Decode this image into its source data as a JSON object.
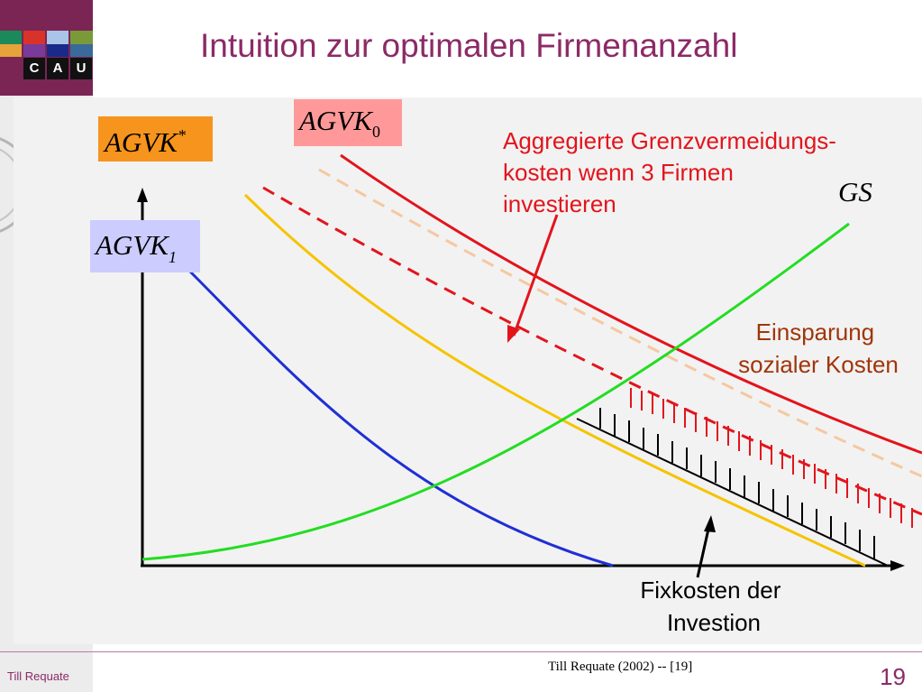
{
  "header": {
    "title": "Intuition zur optimalen Firmenanzahl",
    "logo_letters": [
      "C",
      "A",
      "U"
    ]
  },
  "labels": {
    "agvk_star": {
      "main": "AGVK",
      "sup": "*",
      "bg": "#f7941d"
    },
    "agvk_0": {
      "main": "AGVK",
      "sub": "0",
      "bg": "#ff9999"
    },
    "agvk_1": {
      "main": "AGVK",
      "sub": "1",
      "bg": "#ccccff"
    },
    "gs": "GS"
  },
  "annotations": {
    "aggregated_lines": [
      "Aggregierte Grenzvermeidungs-",
      "kosten wenn 3 Firmen",
      "investieren"
    ],
    "savings_lines": [
      "Einsparung",
      "sozialer Kosten"
    ],
    "fixed_cost_lines": [
      "Fixkosten der",
      "Investion"
    ]
  },
  "colors": {
    "red": "#e3141c",
    "yellow": "#f5c400",
    "blue": "#1f2fd6",
    "green": "#22dd22",
    "peach": "#f5c8a0",
    "title": "#8c2a67"
  },
  "footer": {
    "author": "Till Requate",
    "citation": "Till Requate (2002) -- [19]",
    "page": "19"
  }
}
